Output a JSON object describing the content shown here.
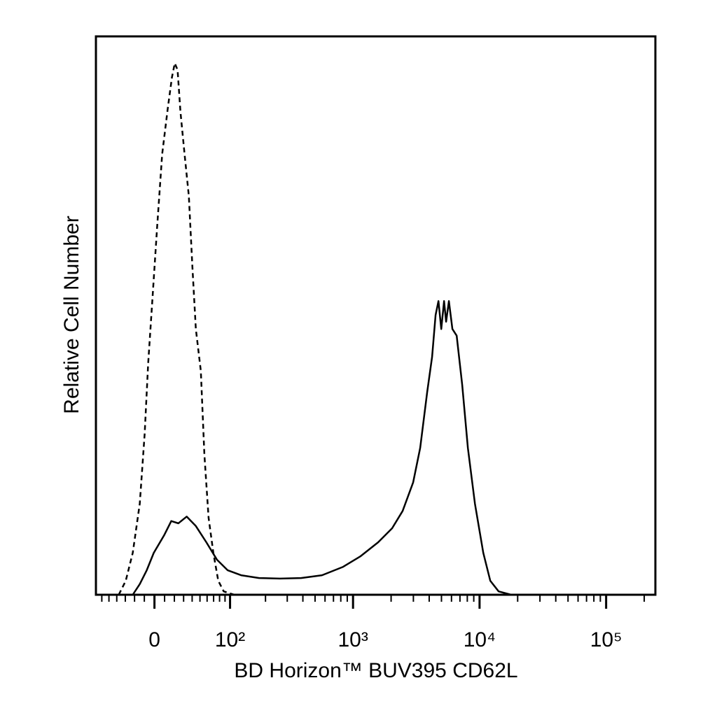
{
  "chart_data": {
    "type": "line",
    "x_label": "BD Horizon™ BUV395 CD62L",
    "y_label": "Relative Cell Number",
    "xscale": "biexponential",
    "xlim": [
      -69,
      245000
    ],
    "ylim": [
      0,
      100
    ],
    "xticks": [
      0,
      {
        "value": 100,
        "label": "10²"
      },
      {
        "value": 1000,
        "label": "10³"
      },
      {
        "value": 10000,
        "label": "10⁴"
      },
      {
        "value": 100000,
        "label": "10⁵"
      }
    ],
    "xminorticks": [
      -60,
      -50,
      -40,
      -30,
      -20,
      -10,
      10,
      20,
      30,
      40,
      50,
      60,
      70,
      80,
      90,
      200,
      300,
      400,
      500,
      600,
      700,
      800,
      900,
      2000,
      3000,
      4000,
      5000,
      6000,
      7000,
      8000,
      9000,
      20000,
      30000,
      40000,
      50000,
      60000,
      70000,
      80000,
      90000,
      200000
    ],
    "series": [
      {
        "color": "#000000",
        "line_style": "dashed",
        "x": [
          -37.6,
          -29.5,
          -21.9,
          -14.6,
          -9.7,
          -6.2,
          -2.1,
          2.8,
          7.6,
          13.2,
          17.5,
          20.4,
          23.4,
          26.5,
          31.1,
          36.0,
          40.2,
          44.6,
          51.1,
          56.1,
          62.2,
          69.6,
          77.7,
          87.5,
          109
        ],
        "values": [
          0,
          2.5,
          7.5,
          16.3,
          28.8,
          41.4,
          52.6,
          66.4,
          78.9,
          87.1,
          92.7,
          95.2,
          94,
          86.5,
          78.9,
          71.4,
          58.9,
          47.6,
          40.1,
          25.1,
          13.8,
          7.5,
          2.5,
          0.6,
          0
        ]
      },
      {
        "color": "#000000",
        "line_style": "solid",
        "x": [
          -21.9,
          -14.6,
          -7.6,
          -0.7,
          9.7,
          16.8,
          24.2,
          33.5,
          44.6,
          58.9,
          75.3,
          95,
          125,
          177,
          262,
          387,
          568,
          834,
          1148,
          1580,
          2036,
          2466,
          2986,
          3395,
          3857,
          4217,
          4496,
          4736,
          4980,
          5240,
          5443,
          5727,
          6100,
          6590,
          7290,
          8080,
          9190,
          10700,
          12150,
          14150,
          17770
        ],
        "values": [
          0,
          1.9,
          4.4,
          7.5,
          10.7,
          13.2,
          12.8,
          14.0,
          12.3,
          9.4,
          6.3,
          4.4,
          3.5,
          3.0,
          2.9,
          3.0,
          3.5,
          5.0,
          6.9,
          9.4,
          11.9,
          15.0,
          20.1,
          26.3,
          36.3,
          42.6,
          50.1,
          52.6,
          47.6,
          52.6,
          48.9,
          52.6,
          47.6,
          46.4,
          37.6,
          26.3,
          16.3,
          7.5,
          2.5,
          0.6,
          0
        ]
      }
    ]
  }
}
